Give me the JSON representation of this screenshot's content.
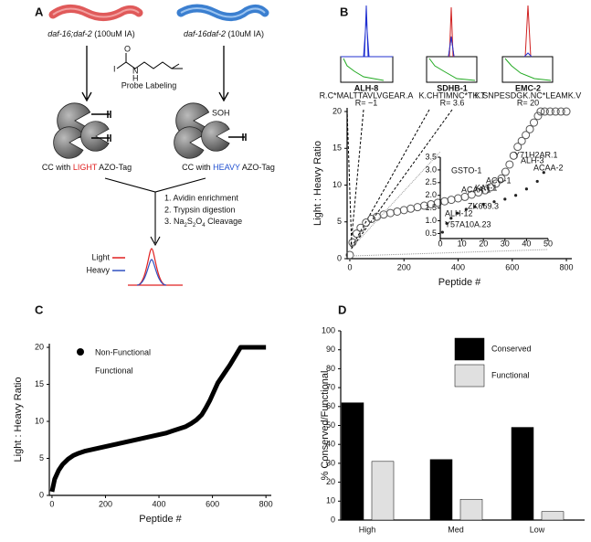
{
  "panel_labels": [
    "A",
    "B",
    "C",
    "D"
  ],
  "diagram": {
    "left_strain": [
      "daf-16;daf-2",
      " (100uM IA)"
    ],
    "right_strain": [
      "daf-16daf-2",
      " (10uM IA)"
    ],
    "probe_atoms": [
      "I",
      "O",
      "N",
      "H"
    ],
    "probe": "Probe Labeling",
    "sulfenic": "SOH",
    "left_tag": [
      "CC with ",
      "LIGHT",
      " AZO-Tag"
    ],
    "right_tag": [
      "CC with ",
      "HEAVY",
      " AZO-Tag"
    ],
    "steps": [
      "1. Avidin enrichment",
      "2. Trypsin digestion",
      [
        "3. Na",
        "2",
        "S",
        "2",
        "O",
        "4",
        " Cleavage"
      ]
    ],
    "legend": [
      "Light",
      "Heavy"
    ]
  },
  "chart_data": [
    {
      "type": "scatter",
      "xlabel": "Peptide #",
      "ylabel": "Light : Heavy Ratio",
      "x": [
        0,
        10,
        25,
        40,
        60,
        80,
        100,
        125,
        150,
        175,
        200,
        225,
        250,
        275,
        300,
        325,
        350,
        375,
        400,
        425,
        450,
        475,
        500,
        520,
        540,
        560,
        575,
        590,
        605,
        620,
        635,
        650,
        665,
        680,
        695,
        705,
        720,
        740,
        760,
        780,
        800
      ],
      "values": [
        0.5,
        2.2,
        3.4,
        4.2,
        4.9,
        5.4,
        5.7,
        6.0,
        6.2,
        6.4,
        6.6,
        6.8,
        7.0,
        7.2,
        7.4,
        7.6,
        7.8,
        8.0,
        8.2,
        8.4,
        8.7,
        9.0,
        9.3,
        9.7,
        10.2,
        10.9,
        11.8,
        12.8,
        14.0,
        15.2,
        16.0,
        16.8,
        17.6,
        18.5,
        19.4,
        20,
        20,
        20,
        20,
        20,
        20
      ],
      "color": "#555555",
      "xlim": [
        -10,
        820
      ],
      "xticks": [
        0,
        200,
        400,
        600,
        800
      ],
      "ylim": [
        0,
        20.5
      ],
      "yticks": [
        0,
        5,
        10,
        15,
        20
      ],
      "peak_panels": [
        {
          "protein": "ALH-8",
          "peptide": "R.C*MALTTAVLVGEAR.A",
          "ratio": "R= ~1"
        },
        {
          "protein": "SDHB-1",
          "peptide": "K.CHTIMNC*TK.T",
          "ratio": "R= 3.6"
        },
        {
          "protein": "EMC-2",
          "peptide": "K.SNPESDGK.NC*LEAMK.V",
          "ratio": "R= 20"
        }
      ],
      "inset": {
        "type": "scatter",
        "x": [
          1,
          3,
          5,
          8,
          12,
          16,
          20,
          25,
          30,
          35,
          40,
          45,
          48
        ],
        "values": [
          0.55,
          0.9,
          1.1,
          1.3,
          1.45,
          1.55,
          1.65,
          1.75,
          1.85,
          2.0,
          2.25,
          2.55,
          2.9
        ],
        "xlim": [
          0,
          50
        ],
        "xticks": [
          0,
          10,
          20,
          30,
          40,
          50
        ],
        "ylim": [
          0.3,
          3.5
        ],
        "yticks": [
          0.5,
          {
            "value": 1,
            "label": "1.0"
          },
          1.5,
          {
            "value": 2,
            "label": "2.0"
          },
          2.5,
          {
            "value": 3,
            "label": "3.0"
          },
          3.5
        ],
        "annotations": [
          "Y57A10A.23",
          "ALH-12",
          "ZK669.3",
          "ACAA-1",
          "GSTO-1",
          "KAT-1",
          "ACO-1",
          "ALH-3",
          "Y71H2AR.1",
          "ACAA-2"
        ]
      }
    },
    {
      "type": "line",
      "xlabel": "Peptide #",
      "ylabel": "Light : Heavy Ratio",
      "series": [
        {
          "name": "Non-Functional",
          "color": "#000000",
          "x": [
            0,
            10,
            25,
            40,
            60,
            80,
            100,
            125,
            150,
            175,
            200,
            225,
            250,
            275,
            300,
            325,
            350,
            375,
            400,
            425,
            450,
            475,
            500,
            520,
            540,
            560,
            575,
            590,
            605,
            620,
            635,
            650,
            665,
            680,
            695,
            705,
            720,
            740,
            760,
            780,
            800
          ],
          "values": [
            0.5,
            2.2,
            3.4,
            4.2,
            4.9,
            5.4,
            5.7,
            6.0,
            6.2,
            6.4,
            6.6,
            6.8,
            7.0,
            7.2,
            7.4,
            7.6,
            7.8,
            8.0,
            8.2,
            8.4,
            8.7,
            9.0,
            9.3,
            9.7,
            10.2,
            10.9,
            11.8,
            12.8,
            14.0,
            15.2,
            16.0,
            16.8,
            17.6,
            18.5,
            19.4,
            20,
            20,
            20,
            20,
            20,
            20
          ]
        }
      ],
      "legend_extra": "Functional",
      "xlim": [
        -10,
        820
      ],
      "xticks": [
        0,
        200,
        400,
        600,
        800
      ],
      "ylim": [
        0,
        20.5
      ],
      "yticks": [
        0,
        5,
        10,
        15,
        20
      ]
    },
    {
      "type": "bar",
      "ylabel": "% Conserved/Functional",
      "categories": [
        "High",
        "Med",
        "Low"
      ],
      "series": [
        {
          "name": "Conserved",
          "color": "#000000",
          "values": [
            62,
            32,
            49
          ]
        },
        {
          "name": "Functional",
          "color": "#e0e0e0",
          "values": [
            31,
            11,
            4.5
          ]
        }
      ],
      "ylim": [
        0,
        100
      ],
      "yticks": [
        0,
        10,
        20,
        30,
        40,
        50,
        60,
        70,
        80,
        90,
        100
      ],
      "legend": "upper right"
    }
  ]
}
